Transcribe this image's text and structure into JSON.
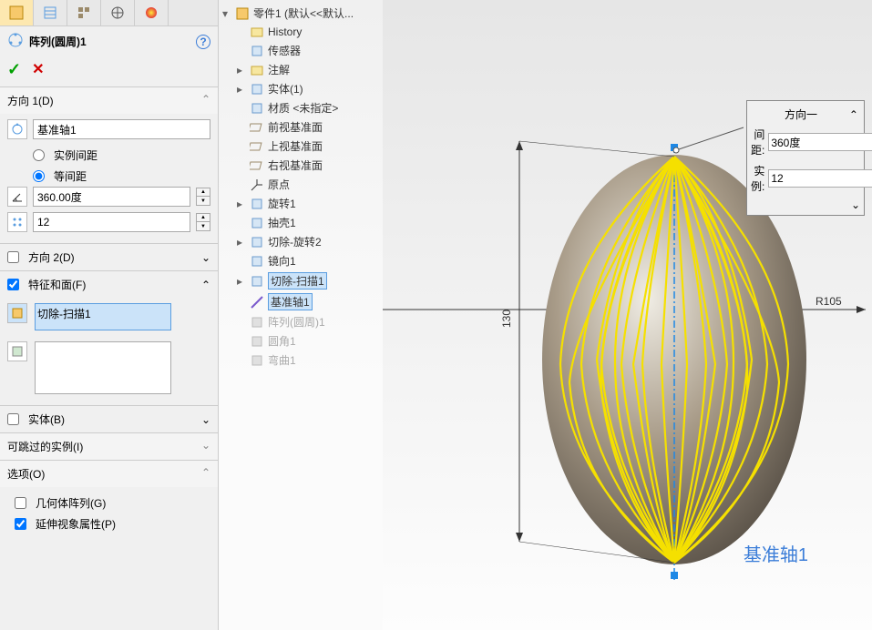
{
  "feature": {
    "icon_color": "#e8a030",
    "title": "阵列(圆周)1"
  },
  "direction1": {
    "header": "方向 1(D)",
    "axis_value": "基准轴1",
    "radio_instance": "实例间距",
    "radio_equal": "等间距",
    "equal_checked": true,
    "angle_value": "360.00度",
    "count_value": "12"
  },
  "direction2": {
    "header": "方向 2(D)",
    "checked": false
  },
  "features_faces": {
    "header": "特征和面(F)",
    "checked": true,
    "feature_item": "切除-扫描1"
  },
  "bodies": {
    "header": "实体(B)",
    "checked": false
  },
  "skip": {
    "header": "可跳过的实例(I)"
  },
  "options": {
    "header": "选项(O)",
    "geom_pattern": "几何体阵列(G)",
    "geom_checked": false,
    "extend_visual": "延伸视象属性(P)",
    "extend_checked": true
  },
  "tree": {
    "root": "零件1  (默认<<默认...",
    "items": [
      {
        "label": "History",
        "indent": 1
      },
      {
        "label": "传感器",
        "indent": 1
      },
      {
        "label": "注解",
        "indent": 1,
        "exp": "▸"
      },
      {
        "label": "实体(1)",
        "indent": 1,
        "exp": "▸"
      },
      {
        "label": "材质 <未指定>",
        "indent": 1
      },
      {
        "label": "前视基准面",
        "indent": 1
      },
      {
        "label": "上视基准面",
        "indent": 1
      },
      {
        "label": "右视基准面",
        "indent": 1
      },
      {
        "label": "原点",
        "indent": 1
      },
      {
        "label": "旋转1",
        "indent": 1,
        "exp": "▸"
      },
      {
        "label": "抽壳1",
        "indent": 1
      },
      {
        "label": "切除-旋转2",
        "indent": 1,
        "exp": "▸"
      },
      {
        "label": "镜向1",
        "indent": 1
      },
      {
        "label": "切除-扫描1",
        "indent": 1,
        "exp": "▸",
        "highlight": true
      },
      {
        "label": "基准轴1",
        "indent": 1,
        "highlight": true
      },
      {
        "label": "阵列(圆周)1",
        "indent": 1,
        "disabled": true
      },
      {
        "label": "圆角1",
        "indent": 1,
        "disabled": true
      },
      {
        "label": "弯曲1",
        "indent": 1,
        "disabled": true
      }
    ]
  },
  "float": {
    "title": "方向一",
    "dist_label": "间距:",
    "dist_value": "360度",
    "inst_label": "实例:",
    "inst_value": "12"
  },
  "viewport": {
    "axis_text": "基准轴1",
    "dim_v": "130",
    "dim_r": "R105"
  },
  "colors": {
    "yellow": "#f5e000",
    "body_dark": "#5a5248",
    "body_light": "#d8d2c8",
    "axis_blue": "#3b7dd8",
    "construction": "#1e88e5",
    "accent_orange": "#e8a030"
  }
}
